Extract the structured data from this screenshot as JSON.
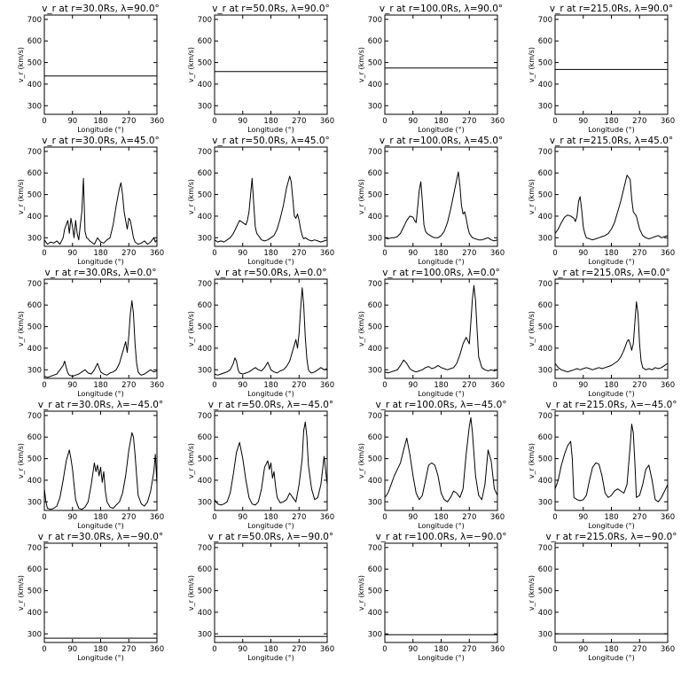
{
  "chart_data": {
    "type": "line",
    "grid": false,
    "rows": 5,
    "cols": 4,
    "xlabel": "Longitude (°)",
    "ylabel": "v_r (km/s)",
    "xlim": [
      0,
      360
    ],
    "ylim": [
      260,
      720
    ],
    "xticks": [
      0,
      90,
      180,
      270,
      360
    ],
    "yticks": [
      300,
      400,
      500,
      600,
      700
    ],
    "line_color": "#000000",
    "panels": [
      {
        "title": "v_r at r=30.0Rs, λ=90.0°",
        "x": [
          0,
          360
        ],
        "y": [
          438,
          438
        ]
      },
      {
        "title": "v_r at r=50.0Rs, λ=90.0°",
        "x": [
          0,
          360
        ],
        "y": [
          458,
          458
        ]
      },
      {
        "title": "v_r at r=100.0Rs, λ=90.0°",
        "x": [
          0,
          360
        ],
        "y": [
          475,
          475
        ]
      },
      {
        "title": "v_r at r=215.0Rs, λ=90.0°",
        "x": [
          0,
          360
        ],
        "y": [
          468,
          468
        ]
      },
      {
        "title": "v_r at r=30.0Rs, λ=45.0°",
        "x": [
          0,
          10,
          20,
          30,
          40,
          50,
          60,
          65,
          70,
          75,
          80,
          85,
          90,
          95,
          100,
          105,
          110,
          115,
          120,
          125,
          130,
          135,
          140,
          145,
          150,
          160,
          170,
          180,
          190,
          200,
          210,
          220,
          230,
          240,
          245,
          250,
          255,
          260,
          265,
          270,
          275,
          280,
          285,
          290,
          300,
          310,
          320,
          330,
          340,
          350,
          355,
          360
        ],
        "y": [
          290,
          270,
          280,
          275,
          285,
          270,
          300,
          340,
          360,
          380,
          320,
          390,
          350,
          300,
          380,
          320,
          290,
          360,
          420,
          575,
          330,
          300,
          295,
          285,
          280,
          270,
          300,
          280,
          275,
          290,
          300,
          360,
          450,
          530,
          555,
          500,
          420,
          380,
          340,
          390,
          380,
          340,
          300,
          280,
          270,
          275,
          285,
          270,
          280,
          300,
          280,
          290
        ]
      },
      {
        "title": "v_r at r=50.0Rs, λ=45.0°",
        "x": [
          0,
          10,
          20,
          30,
          40,
          50,
          60,
          70,
          80,
          90,
          100,
          105,
          110,
          115,
          120,
          125,
          130,
          135,
          140,
          145,
          150,
          160,
          170,
          180,
          190,
          200,
          210,
          220,
          230,
          240,
          245,
          250,
          255,
          260,
          265,
          270,
          275,
          280,
          285,
          290,
          300,
          310,
          320,
          330,
          340,
          350,
          360
        ],
        "y": [
          290,
          280,
          285,
          280,
          290,
          300,
          320,
          350,
          380,
          370,
          360,
          380,
          420,
          500,
          575,
          460,
          350,
          320,
          310,
          300,
          290,
          285,
          290,
          300,
          310,
          340,
          390,
          450,
          530,
          585,
          560,
          480,
          400,
          390,
          410,
          380,
          340,
          310,
          295,
          300,
          290,
          285,
          290,
          285,
          280,
          285,
          290
        ]
      },
      {
        "title": "v_r at r=100.0Rs, λ=45.0°",
        "x": [
          0,
          10,
          20,
          30,
          40,
          50,
          60,
          70,
          80,
          90,
          95,
          100,
          105,
          110,
          115,
          120,
          125,
          130,
          135,
          140,
          145,
          150,
          160,
          170,
          180,
          190,
          200,
          210,
          220,
          230,
          235,
          240,
          245,
          250,
          255,
          260,
          265,
          270,
          280,
          290,
          300,
          310,
          320,
          330,
          340,
          350,
          360
        ],
        "y": [
          300,
          295,
          300,
          300,
          305,
          320,
          350,
          380,
          400,
          395,
          380,
          370,
          440,
          520,
          560,
          470,
          360,
          330,
          320,
          315,
          310,
          305,
          300,
          300,
          310,
          330,
          370,
          430,
          500,
          570,
          605,
          540,
          450,
          410,
          420,
          390,
          350,
          320,
          300,
          295,
          290,
          290,
          295,
          300,
          290,
          285,
          290
        ]
      },
      {
        "title": "v_r at r=215.0Rs, λ=45.0°",
        "x": [
          0,
          10,
          20,
          30,
          40,
          50,
          60,
          65,
          70,
          75,
          80,
          85,
          90,
          95,
          100,
          110,
          120,
          130,
          140,
          150,
          160,
          170,
          180,
          190,
          200,
          210,
          220,
          230,
          240,
          245,
          250,
          255,
          260,
          265,
          270,
          280,
          290,
          300,
          310,
          320,
          330,
          340,
          350,
          360
        ],
        "y": [
          320,
          340,
          370,
          395,
          405,
          400,
          390,
          375,
          400,
          470,
          490,
          430,
          350,
          320,
          300,
          295,
          290,
          295,
          300,
          305,
          310,
          320,
          340,
          370,
          420,
          470,
          530,
          590,
          570,
          480,
          420,
          410,
          400,
          370,
          340,
          310,
          300,
          295,
          300,
          305,
          310,
          300,
          305,
          310
        ]
      },
      {
        "title": "v_r at r=30.0Rs, λ=0.0°",
        "x": [
          0,
          10,
          20,
          30,
          40,
          50,
          60,
          65,
          70,
          75,
          80,
          90,
          100,
          110,
          120,
          130,
          140,
          150,
          160,
          170,
          180,
          190,
          200,
          210,
          220,
          230,
          240,
          250,
          260,
          265,
          270,
          275,
          280,
          285,
          290,
          295,
          300,
          305,
          310,
          320,
          330,
          340,
          350,
          360
        ],
        "y": [
          270,
          265,
          270,
          275,
          280,
          300,
          320,
          340,
          310,
          285,
          275,
          270,
          275,
          280,
          290,
          300,
          285,
          280,
          300,
          330,
          290,
          280,
          275,
          285,
          290,
          300,
          330,
          380,
          430,
          380,
          460,
          560,
          620,
          560,
          420,
          330,
          290,
          280,
          275,
          280,
          290,
          300,
          290,
          295
        ]
      },
      {
        "title": "v_r at r=50.0Rs, λ=0.0°",
        "x": [
          0,
          10,
          20,
          30,
          40,
          50,
          60,
          65,
          70,
          75,
          80,
          90,
          100,
          110,
          120,
          130,
          140,
          150,
          160,
          170,
          180,
          190,
          200,
          210,
          220,
          230,
          240,
          250,
          260,
          265,
          270,
          275,
          280,
          285,
          290,
          295,
          300,
          305,
          310,
          320,
          330,
          340,
          350,
          360
        ],
        "y": [
          280,
          275,
          280,
          285,
          290,
          300,
          330,
          355,
          340,
          300,
          285,
          280,
          285,
          290,
          300,
          310,
          300,
          295,
          310,
          335,
          300,
          290,
          285,
          295,
          300,
          315,
          340,
          390,
          440,
          400,
          470,
          580,
          680,
          600,
          450,
          350,
          300,
          290,
          285,
          290,
          300,
          310,
          300,
          305
        ]
      },
      {
        "title": "v_r at r=100.0Rs, λ=0.0°",
        "x": [
          0,
          10,
          20,
          30,
          40,
          50,
          60,
          70,
          80,
          90,
          100,
          110,
          120,
          130,
          140,
          150,
          160,
          170,
          180,
          190,
          200,
          210,
          220,
          230,
          240,
          250,
          260,
          270,
          275,
          280,
          285,
          290,
          295,
          300,
          310,
          320,
          330,
          340,
          350,
          360
        ],
        "y": [
          290,
          285,
          290,
          295,
          300,
          320,
          345,
          330,
          305,
          295,
          290,
          295,
          300,
          310,
          315,
          305,
          310,
          320,
          310,
          305,
          300,
          305,
          310,
          330,
          370,
          420,
          450,
          420,
          520,
          630,
          690,
          620,
          480,
          360,
          310,
          300,
          295,
          300,
          295,
          300
        ]
      },
      {
        "title": "v_r at r=215.0Rs, λ=0.0°",
        "x": [
          0,
          10,
          20,
          30,
          40,
          50,
          60,
          70,
          80,
          90,
          100,
          110,
          120,
          130,
          140,
          150,
          160,
          170,
          180,
          190,
          200,
          210,
          220,
          230,
          235,
          240,
          245,
          250,
          255,
          260,
          265,
          270,
          275,
          280,
          290,
          300,
          310,
          320,
          330,
          340,
          350,
          360
        ],
        "y": [
          330,
          310,
          300,
          295,
          290,
          295,
          300,
          305,
          300,
          305,
          310,
          305,
          300,
          305,
          310,
          305,
          310,
          315,
          320,
          330,
          340,
          360,
          390,
          430,
          440,
          420,
          390,
          420,
          520,
          615,
          560,
          420,
          340,
          310,
          300,
          305,
          300,
          310,
          305,
          310,
          320,
          330
        ]
      },
      {
        "title": "v_r at r=30.0Rs, λ=−45.0°",
        "x": [
          0,
          5,
          10,
          20,
          30,
          40,
          50,
          60,
          70,
          80,
          85,
          90,
          95,
          100,
          110,
          120,
          130,
          140,
          150,
          160,
          165,
          170,
          175,
          180,
          185,
          190,
          195,
          200,
          210,
          220,
          230,
          240,
          250,
          260,
          270,
          280,
          285,
          290,
          295,
          300,
          310,
          320,
          330,
          340,
          350,
          355,
          360
        ],
        "y": [
          360,
          300,
          270,
          265,
          270,
          280,
          320,
          400,
          490,
          540,
          500,
          450,
          380,
          310,
          270,
          265,
          275,
          300,
          380,
          480,
          440,
          470,
          420,
          460,
          390,
          440,
          350,
          300,
          275,
          270,
          285,
          300,
          340,
          420,
          540,
          620,
          600,
          520,
          420,
          330,
          290,
          280,
          300,
          350,
          440,
          520,
          380
        ]
      },
      {
        "title": "v_r at r=50.0Rs, λ=−45.0°",
        "x": [
          0,
          10,
          20,
          30,
          40,
          50,
          60,
          70,
          80,
          90,
          100,
          110,
          120,
          130,
          140,
          150,
          160,
          170,
          175,
          180,
          185,
          190,
          195,
          200,
          210,
          220,
          230,
          240,
          250,
          260,
          270,
          280,
          285,
          290,
          295,
          300,
          310,
          320,
          330,
          340,
          350,
          360
        ],
        "y": [
          310,
          290,
          285,
          290,
          300,
          340,
          430,
          530,
          575,
          500,
          400,
          320,
          290,
          285,
          300,
          360,
          460,
          490,
          450,
          480,
          410,
          440,
          370,
          320,
          295,
          300,
          310,
          340,
          320,
          300,
          380,
          500,
          630,
          670,
          600,
          470,
          360,
          310,
          320,
          380,
          510,
          380
        ]
      },
      {
        "title": "v_r at r=100.0Rs, λ=−45.0°",
        "x": [
          0,
          10,
          20,
          30,
          40,
          50,
          60,
          70,
          80,
          90,
          100,
          110,
          120,
          130,
          140,
          150,
          160,
          170,
          180,
          190,
          200,
          210,
          220,
          230,
          240,
          250,
          260,
          270,
          275,
          280,
          290,
          300,
          310,
          320,
          330,
          340,
          350,
          360
        ],
        "y": [
          320,
          340,
          380,
          420,
          450,
          480,
          540,
          595,
          520,
          420,
          340,
          310,
          330,
          400,
          470,
          480,
          470,
          420,
          340,
          310,
          300,
          320,
          350,
          340,
          320,
          360,
          520,
          650,
          690,
          620,
          420,
          330,
          310,
          380,
          540,
          490,
          360,
          330
        ]
      },
      {
        "title": "v_r at r=215.0Rs, λ=−45.0°",
        "x": [
          0,
          10,
          20,
          30,
          40,
          50,
          55,
          60,
          70,
          80,
          90,
          100,
          110,
          120,
          130,
          140,
          150,
          160,
          170,
          180,
          190,
          200,
          210,
          220,
          230,
          240,
          245,
          250,
          255,
          260,
          270,
          280,
          290,
          300,
          310,
          320,
          330,
          340,
          350,
          360
        ],
        "y": [
          360,
          400,
          470,
          520,
          560,
          580,
          500,
          320,
          310,
          305,
          310,
          330,
          400,
          460,
          480,
          475,
          420,
          340,
          320,
          330,
          350,
          360,
          350,
          340,
          380,
          560,
          660,
          620,
          480,
          320,
          330,
          380,
          450,
          470,
          400,
          310,
          300,
          320,
          350,
          380
        ]
      },
      {
        "title": "v_r at r=30.0Rs, λ=−90.0°",
        "x": [
          0,
          360
        ],
        "y": [
          280,
          280
        ]
      },
      {
        "title": "v_r at r=50.0Rs, λ=−90.0°",
        "x": [
          0,
          360
        ],
        "y": [
          288,
          288
        ]
      },
      {
        "title": "v_r at r=100.0Rs, λ=−90.0°",
        "x": [
          0,
          360
        ],
        "y": [
          296,
          296
        ]
      },
      {
        "title": "v_r at r=215.0Rs, λ=−90.0°",
        "x": [
          0,
          360
        ],
        "y": [
          300,
          300
        ]
      }
    ]
  }
}
